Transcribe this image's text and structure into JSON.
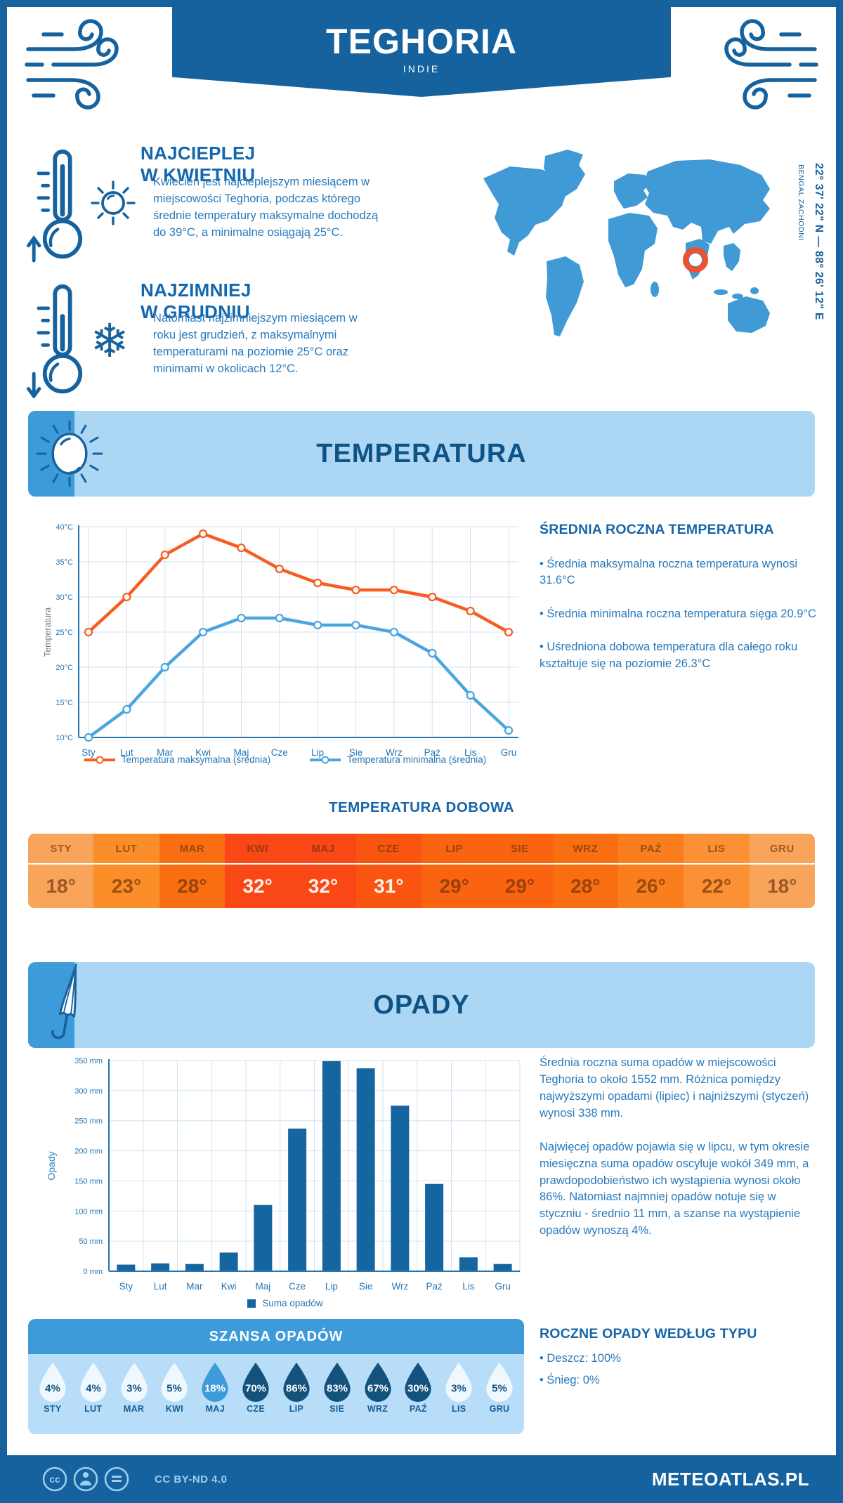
{
  "page": {
    "title": "TEGHORIA",
    "subtitle": "INDIE",
    "coordinates": "22° 37' 22\" N — 88° 26' 12\" E",
    "region": "BENGAL ZACHODNI",
    "footer_license": "CC BY-ND 4.0",
    "footer_brand": "METEOATLAS.PL"
  },
  "colors": {
    "primary_blue": "#15629E",
    "band_light_blue": "#ABD7F5",
    "band_strip_blue": "#3E9BD9",
    "section_title_navy": "#0F5385",
    "body_text_blue": "#2779BC",
    "map_blue": "#3F9AD5",
    "marker_orange": "#F0512D",
    "line_max_orange": "#F85C1F",
    "line_min_blue": "#4BA5DE",
    "bar_blue": "#1565A0",
    "drop_low": "#EFF8FE",
    "drop_mid": "#3E9BD9",
    "drop_high": "#14527E"
  },
  "highlights": [
    {
      "title": "NAJCIEPLEJ W KWIETNIU",
      "text": "Kwiecień jest najcieplejszym miesiącem w miejscowości Teghoria, podczas którego średnie temperatury maksymalne dochodzą do 39°C, a minimalne osiągają 25°C."
    },
    {
      "title": "NAJZIMNIEJ W GRUDNIU",
      "text": "Natomiast najzimniejszym miesiącem w roku jest grudzień, z maksymalnymi temperaturami na poziomie 25°C oraz minimami w okolicach 12°C."
    }
  ],
  "temperature": {
    "section_title": "TEMPERATURA",
    "stats_title": "ŚREDNIA ROCZNA TEMPERATURA",
    "stats": [
      "• Średnia maksymalna roczna temperatura wynosi 31.6°C",
      "• Średnia minimalna roczna temperatura sięga 20.9°C",
      "• Uśredniona dobowa temperatura dla całego roku kształtuje się na poziomie 26.3°C"
    ],
    "daily_title": "TEMPERATURA DOBOWA",
    "daily_months": [
      "STY",
      "LUT",
      "MAR",
      "KWI",
      "MAJ",
      "CZE",
      "LIP",
      "SIE",
      "WRZ",
      "PAŹ",
      "LIS",
      "GRU"
    ],
    "daily_values": [
      "18°",
      "23°",
      "28°",
      "32°",
      "32°",
      "31°",
      "29°",
      "29°",
      "28°",
      "26°",
      "22°",
      "18°"
    ],
    "daily_colors": [
      "#F9A45B",
      "#FB8E28",
      "#FA6E12",
      "#F94715",
      "#F94715",
      "#F95511",
      "#FA6410",
      "#FA6410",
      "#FA6E12",
      "#FA7E1E",
      "#FB9134",
      "#F9A45B"
    ],
    "daily_light_text": [
      false,
      false,
      false,
      true,
      true,
      true,
      false,
      false,
      false,
      false,
      false,
      false
    ]
  },
  "precipitation": {
    "section_title": "OPADY",
    "paragraphs": [
      "Średnia roczna suma opadów w miejscowości Teghoria to około 1552 mm. Różnica pomiędzy najwyższymi opadami (lipiec) i najniższymi (styczeń) wynosi 338 mm.",
      "Najwięcej opadów pojawia się w lipcu, w tym okresie miesięczna suma opadów oscyluje wokół 349 mm, a prawdopodobieństwo ich wystąpienia wynosi około 86%. Natomiast najmniej opadów notuje się w styczniu - średnio 11 mm, a szanse na wystąpienie opadów wynoszą 4%."
    ],
    "type_title": "ROCZNE OPADY WEDŁUG TYPU",
    "type_items": [
      "• Deszcz: 100%",
      "• Śnieg: 0%"
    ]
  },
  "precip_chance": {
    "title": "SZANSA OPADÓW",
    "months": [
      "STY",
      "LUT",
      "MAR",
      "KWI",
      "MAJ",
      "CZE",
      "LIP",
      "SIE",
      "WRZ",
      "PAŹ",
      "LIS",
      "GRU"
    ],
    "values": [
      "4%",
      "4%",
      "3%",
      "5%",
      "18%",
      "70%",
      "86%",
      "83%",
      "67%",
      "30%",
      "3%",
      "5%"
    ],
    "levels": [
      "low",
      "low",
      "low",
      "low",
      "mid",
      "high",
      "high",
      "high",
      "high",
      "high",
      "low",
      "low"
    ]
  },
  "chart_data": [
    {
      "type": "line",
      "title": "Temperatura",
      "categories": [
        "Sty",
        "Lut",
        "Mar",
        "Kwi",
        "Maj",
        "Cze",
        "Lip",
        "Sie",
        "Wrz",
        "Paź",
        "Lis",
        "Gru"
      ],
      "series": [
        {
          "name": "Temperatura maksymalna (średnia)",
          "color": "#F85C1F",
          "values": [
            25,
            30,
            36,
            39,
            37,
            34,
            32,
            31,
            31,
            30,
            28,
            25
          ]
        },
        {
          "name": "Temperatura minimalna (średnia)",
          "color": "#4BA5DE",
          "values": [
            10,
            14,
            20,
            25,
            27,
            27,
            26,
            26,
            25,
            22,
            16,
            11
          ]
        }
      ],
      "xlabel": "",
      "ylabel": "Temperatura",
      "ytick_suffix": "°C",
      "ylim": [
        10,
        40
      ],
      "ystep": 5,
      "grid": true,
      "legend_position": "bottom"
    },
    {
      "type": "bar",
      "title": "Opady",
      "categories": [
        "Sty",
        "Lut",
        "Mar",
        "Kwi",
        "Maj",
        "Cze",
        "Lip",
        "Sie",
        "Wrz",
        "Paź",
        "Lis",
        "Gru"
      ],
      "series": [
        {
          "name": "Suma opadów",
          "color": "#1565A0",
          "values": [
            11,
            13,
            12,
            31,
            110,
            237,
            349,
            337,
            275,
            145,
            23,
            12
          ]
        }
      ],
      "xlabel": "",
      "ylabel": "Opady",
      "ytick_suffix": " mm",
      "ylim": [
        0,
        350
      ],
      "ystep": 50,
      "grid": true,
      "legend_position": "bottom"
    }
  ]
}
